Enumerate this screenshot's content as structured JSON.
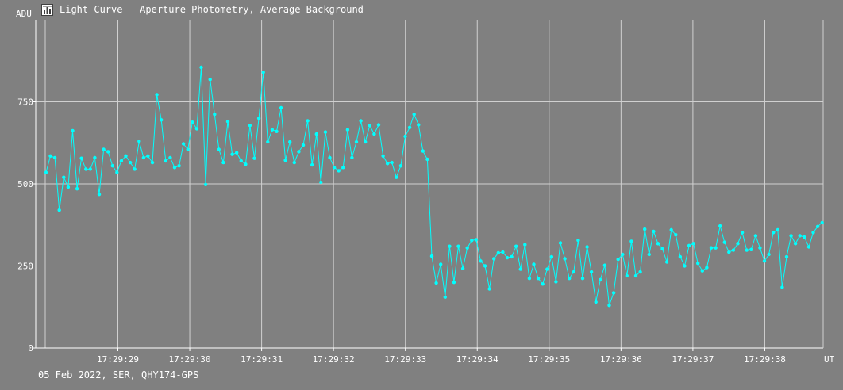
{
  "window": {
    "title": "Light Curve - Aperture Photometry, Average Background",
    "icon": "chart-icon"
  },
  "footer": {
    "info": "05 Feb 2022, SER, QHY174-GPS"
  },
  "colors": {
    "background": "#808080",
    "grid": "#d0d0d0",
    "axis": "#ffffff",
    "series": "#00ffff",
    "text": "#ffffff"
  },
  "chart_data": {
    "type": "line",
    "title": "Light Curve - Aperture Photometry, Average Background",
    "xlabel": "UT",
    "ylabel": "ADU",
    "grid": true,
    "ylim": [
      0,
      1000
    ],
    "yticks": [
      0,
      250,
      500,
      750
    ],
    "x_time_start": "17:29:28.0",
    "xlim_seconds": [
      28.0,
      38.97
    ],
    "xtick_seconds": [
      29,
      30,
      31,
      32,
      33,
      34,
      35,
      36,
      37,
      38
    ],
    "xticks": [
      "17:29:29",
      "17:29:30",
      "17:29:31",
      "17:29:32",
      "17:29:33",
      "17:29:34",
      "17:29:35",
      "17:29:36",
      "17:29:37",
      "17:29:38"
    ],
    "series": [
      {
        "color": "#00ffff",
        "x_seconds_start": 28.0,
        "x_seconds_step": 0.0617,
        "values": [
          535,
          585,
          580,
          420,
          520,
          490,
          662,
          485,
          578,
          545,
          545,
          580,
          468,
          605,
          598,
          555,
          535,
          570,
          585,
          565,
          545,
          630,
          580,
          585,
          565,
          772,
          695,
          570,
          580,
          550,
          555,
          622,
          605,
          688,
          668,
          855,
          498,
          818,
          712,
          605,
          565,
          690,
          590,
          595,
          570,
          560,
          678,
          578,
          700,
          840,
          628,
          665,
          660,
          732,
          572,
          628,
          565,
          598,
          618,
          692,
          558,
          652,
          505,
          658,
          580,
          550,
          540,
          550,
          665,
          580,
          628,
          692,
          628,
          678,
          652,
          680,
          585,
          562,
          565,
          520,
          555,
          645,
          672,
          712,
          680,
          600,
          575,
          280,
          198,
          255,
          155,
          310,
          200,
          310,
          242,
          305,
          328,
          330,
          265,
          250,
          180,
          272,
          290,
          292,
          275,
          278,
          310,
          240,
          315,
          212,
          255,
          212,
          195,
          240,
          278,
          202,
          320,
          272,
          212,
          232,
          328,
          212,
          308,
          232,
          140,
          208,
          252,
          130,
          168,
          270,
          285,
          220,
          325,
          220,
          232,
          362,
          285,
          355,
          318,
          302,
          262,
          360,
          345,
          278,
          250,
          312,
          318,
          258,
          235,
          245,
          305,
          305,
          372,
          322,
          292,
          298,
          318,
          352,
          298,
          300,
          342,
          305,
          265,
          285,
          352,
          360,
          185,
          278,
          342,
          318,
          342,
          338,
          308,
          352,
          370,
          382
        ]
      }
    ]
  }
}
